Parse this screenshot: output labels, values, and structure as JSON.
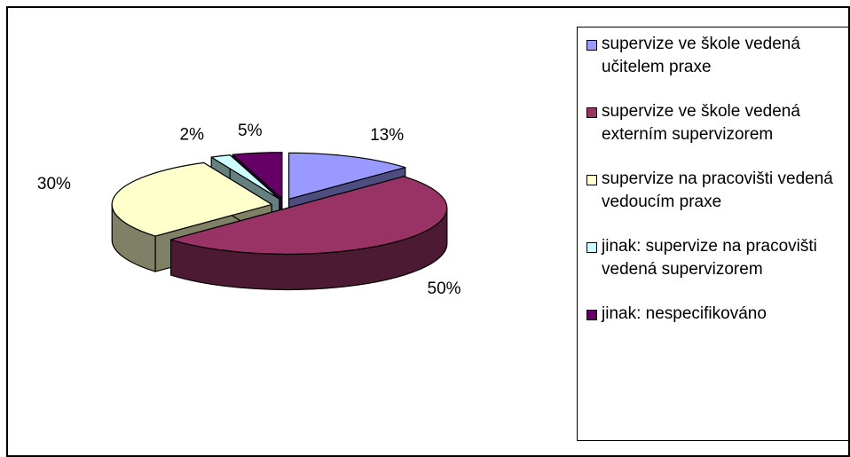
{
  "chart_data": {
    "type": "pie3d",
    "categories": [
      "supervize ve škole vedená učitelem praxe",
      "supervize ve škole vedená externím supervizorem",
      "supervize na pracovišti vedená vedoucím praxe",
      "jinak:  supervize na pracovišti vedená supervizorem",
      "jinak:  nespecifikováno"
    ],
    "values": [
      13,
      50,
      30,
      2,
      5
    ],
    "value_labels": [
      "13%",
      "50%",
      "30%",
      "2%",
      "5%"
    ],
    "colors": [
      "#9999ff",
      "#993366",
      "#ffffcc",
      "#ccffff",
      "#660066"
    ],
    "legend": "right"
  }
}
